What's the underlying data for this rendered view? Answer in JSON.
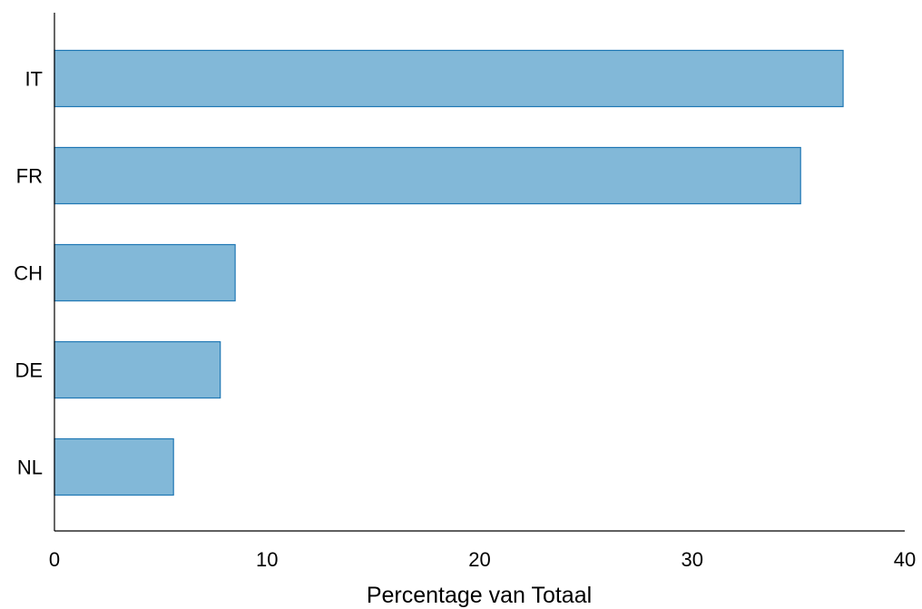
{
  "chart_data": {
    "type": "bar",
    "orientation": "horizontal",
    "categories": [
      "IT",
      "FR",
      "CH",
      "DE",
      "NL"
    ],
    "values": [
      37.1,
      35.1,
      8.5,
      7.8,
      5.6
    ],
    "xlabel": "Percentage van Totaal",
    "ylabel": "",
    "xlim": [
      0,
      40
    ],
    "xticks": [
      "0",
      "10",
      "20",
      "30",
      "40"
    ],
    "grid": false,
    "colors": {
      "bar_fill": "#82b8d8",
      "bar_stroke": "#1f77b4",
      "axis": "#000000"
    }
  }
}
